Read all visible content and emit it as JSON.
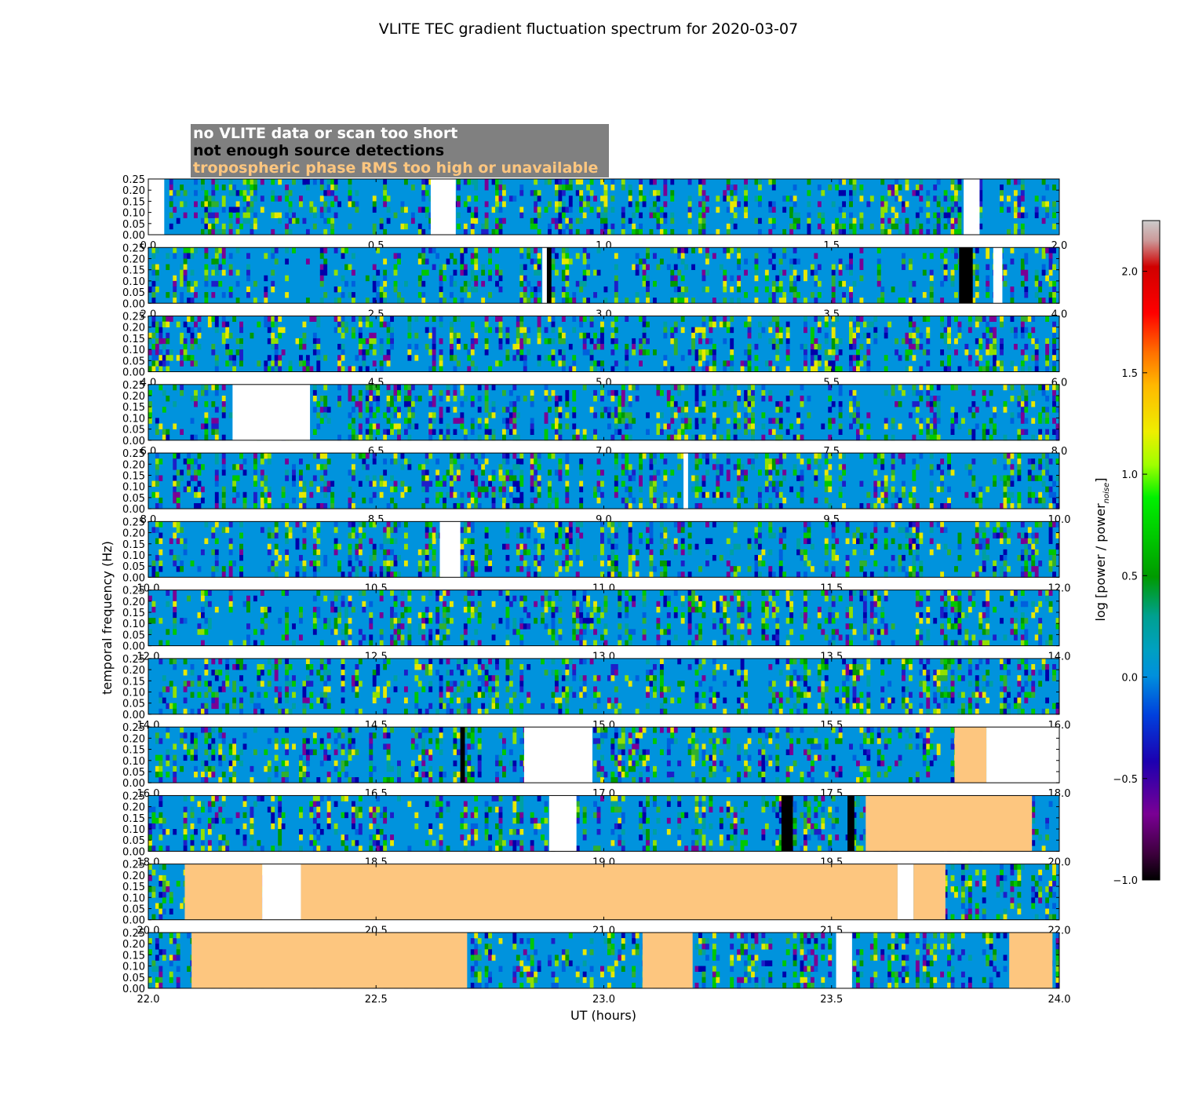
{
  "chart_data": {
    "type": "heatmap",
    "title": "VLITE TEC gradient fluctuation spectrum for 2020-03-07",
    "xlabel": "UT (hours)",
    "ylabel": "temporal frequency (Hz)",
    "colorbar_label": "log [power / power",
    "colorbar_label_sub": "noise",
    "colorbar_label_end": "]",
    "colorbar_range": [
      -1.0,
      2.25
    ],
    "colorbar_ticks": [
      "−1.0",
      "−0.5",
      "0.0",
      "0.5",
      "1.0",
      "1.5",
      "2.0"
    ],
    "colorbar_tick_values": [
      -1.0,
      -0.5,
      0.0,
      0.5,
      1.0,
      1.5,
      2.0
    ],
    "ytick_labels": [
      "0.00",
      "0.05",
      "0.10",
      "0.15",
      "0.20",
      "0.25"
    ],
    "ylim": [
      0,
      0.25
    ],
    "legend": [
      {
        "label": "no VLITE data or scan too short",
        "color": "#ffffff"
      },
      {
        "label": "not enough source detections",
        "color": "#000000"
      },
      {
        "label": "tropospheric phase RMS too high or unavailable",
        "color": "#fdc67f"
      }
    ],
    "mask_colors": {
      "nodata": "#ffffff",
      "nodet": "#000000",
      "tropo": "#fdc67f"
    },
    "panels": [
      {
        "range": [
          0,
          2
        ],
        "ticks": [
          "0.0",
          "0.5",
          "1.0",
          "1.5",
          "2.0"
        ],
        "masks": [
          [
            0,
            0.035,
            "nodata"
          ],
          [
            0.62,
            0.675,
            "nodata"
          ],
          [
            1.79,
            1.825,
            "nodata"
          ]
        ]
      },
      {
        "range": [
          2,
          4
        ],
        "ticks": [
          "2.0",
          "2.5",
          "3.0",
          "3.5",
          "4.0"
        ],
        "masks": [
          [
            2.865,
            2.875,
            "nodata"
          ],
          [
            2.875,
            2.885,
            "nodet"
          ],
          [
            3.78,
            3.81,
            "nodet"
          ],
          [
            3.855,
            3.875,
            "nodata"
          ]
        ]
      },
      {
        "range": [
          4,
          6
        ],
        "ticks": [
          "4.0",
          "4.5",
          "5.0",
          "5.5",
          "6.0"
        ],
        "masks": []
      },
      {
        "range": [
          6,
          8
        ],
        "ticks": [
          "6.0",
          "6.5",
          "7.0",
          "7.5",
          "8.0"
        ],
        "masks": [
          [
            6.185,
            6.355,
            "nodata"
          ]
        ]
      },
      {
        "range": [
          8,
          10
        ],
        "ticks": [
          "8.0",
          "8.5",
          "9.0",
          "9.5",
          "10.0"
        ],
        "masks": [
          [
            9.175,
            9.185,
            "nodata"
          ]
        ]
      },
      {
        "range": [
          10,
          12
        ],
        "ticks": [
          "10.0",
          "10.5",
          "11.0",
          "11.5",
          "12.0"
        ],
        "masks": [
          [
            10.64,
            10.685,
            "nodata"
          ]
        ]
      },
      {
        "range": [
          12,
          14
        ],
        "ticks": [
          "12.0",
          "12.5",
          "13.0",
          "13.5",
          "14.0"
        ],
        "masks": []
      },
      {
        "range": [
          14,
          16
        ],
        "ticks": [
          "14.0",
          "14.5",
          "15.0",
          "15.5",
          "16.0"
        ],
        "masks": []
      },
      {
        "range": [
          16,
          18
        ],
        "ticks": [
          "16.0",
          "16.5",
          "17.0",
          "17.5",
          "18.0"
        ],
        "masks": [
          [
            16.685,
            16.695,
            "nodet"
          ],
          [
            16.825,
            16.975,
            "nodata"
          ],
          [
            17.77,
            17.84,
            "tropo"
          ],
          [
            17.84,
            18.0,
            "nodata"
          ]
        ]
      },
      {
        "range": [
          18,
          20
        ],
        "ticks": [
          "18.0",
          "18.5",
          "19.0",
          "19.5",
          "20.0"
        ],
        "masks": [
          [
            18.88,
            18.94,
            "nodata"
          ],
          [
            19.39,
            19.415,
            "nodet"
          ],
          [
            19.535,
            19.55,
            "nodet"
          ],
          [
            19.575,
            19.94,
            "tropo"
          ]
        ]
      },
      {
        "range": [
          20,
          22
        ],
        "ticks": [
          "20.0",
          "20.5",
          "21.0",
          "21.5",
          "22.0"
        ],
        "masks": [
          [
            20.08,
            20.25,
            "tropo"
          ],
          [
            20.25,
            20.335,
            "nodata"
          ],
          [
            20.335,
            21.645,
            "tropo"
          ],
          [
            21.645,
            21.68,
            "nodata"
          ],
          [
            21.68,
            21.75,
            "tropo"
          ]
        ]
      },
      {
        "range": [
          22,
          24
        ],
        "ticks": [
          "22.0",
          "22.5",
          "23.0",
          "23.5",
          "24.0"
        ],
        "masks": [
          [
            22.095,
            22.7,
            "tropo"
          ],
          [
            23.085,
            23.195,
            "tropo"
          ],
          [
            23.51,
            23.545,
            "nodata"
          ],
          [
            23.89,
            23.985,
            "tropo"
          ]
        ]
      }
    ]
  }
}
